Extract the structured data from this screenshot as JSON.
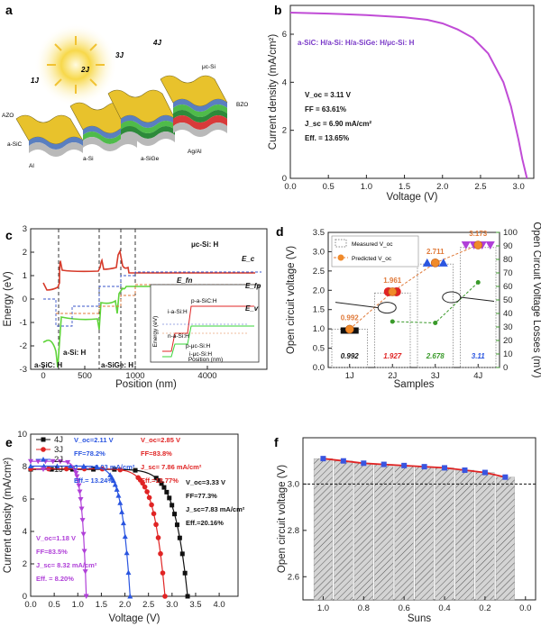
{
  "panel_labels": {
    "a": "a",
    "b": "b",
    "c": "c",
    "d": "d",
    "e": "e",
    "f": "f"
  },
  "panel_a": {
    "labels": [
      "1J",
      "2J",
      "3J",
      "4J",
      "AZO",
      "a-SiC",
      "Al",
      "a-Si",
      "a-SiGe",
      "Ag/Al",
      "μc-Si",
      "BZO"
    ],
    "colors": {
      "yellow": "#e8c22c",
      "blue": "#5a7fc0",
      "green": "#4fbb4a",
      "red": "#d83a3a",
      "grey": "#b9b9b9",
      "sun": "#f7d84a"
    }
  },
  "chart_data": [
    {
      "id": "b",
      "type": "line",
      "xlabel": "Voltage (V)",
      "ylabel": "Current density (mA/cm²)",
      "xlim": [
        0.0,
        3.2
      ],
      "ylim": [
        0,
        7.2
      ],
      "xticks": [
        "0.0",
        "0.5",
        "1.0",
        "1.5",
        "2.0",
        "2.5",
        "3.0"
      ],
      "yticks": [
        "0",
        "2",
        "4",
        "6"
      ],
      "series": [
        {
          "name": "a-SiC: H/a-Si: H/a-SiGe: H/μc-Si: H",
          "color": "#c04bd6",
          "x": [
            0.0,
            0.5,
            1.0,
            1.5,
            1.8,
            2.0,
            2.2,
            2.4,
            2.6,
            2.8,
            2.9,
            3.0,
            3.05,
            3.11
          ],
          "y": [
            6.9,
            6.86,
            6.8,
            6.7,
            6.6,
            6.45,
            6.2,
            5.85,
            5.2,
            4.0,
            3.0,
            1.6,
            0.8,
            0.0
          ]
        }
      ],
      "annotations": [
        "V_oc = 3.11 V",
        "FF = 63.61%",
        "J_sc = 6.90 mA/cm²",
        "Eff. = 13.65%"
      ]
    },
    {
      "id": "c",
      "type": "line",
      "xlabel": "Position (nm)",
      "ylabel": "Energy (eV)",
      "ylim": [
        -3,
        3
      ],
      "yticks": [
        "-3",
        "-2",
        "-1",
        "0",
        "1",
        "2",
        "3"
      ],
      "xticks": [
        "0",
        "500",
        "1000",
        "4000"
      ],
      "region_labels": [
        "a-SiC: H",
        "a-Si: H",
        "a-SiGe: H",
        "μc-Si: H"
      ],
      "band_labels": [
        "E_c",
        "E_fn",
        "E_fp",
        "E_v"
      ],
      "inset_labels": [
        "p-a-SiC:H",
        "i-a-Si:H",
        "n-a-Si:H",
        "p-μc-Si:H",
        "i-μc-Si:H",
        "Energy (eV)",
        "Position (nm)"
      ],
      "colors": {
        "ec": "#d63a2a",
        "ev": "#5fd43a",
        "ef_n": "#3a55c8",
        "ef_p": "#e07a3a"
      }
    },
    {
      "id": "d",
      "type": "scatter",
      "categories": [
        "1J",
        "2J",
        "3J",
        "4J"
      ],
      "xlabel": "Samples",
      "ylabel_left": "Open circuit voltage (V)",
      "ylabel_right": "Open Circuit Voltage Losses (mV)",
      "ylim_left": [
        0.0,
        3.5
      ],
      "ylim_right": [
        0,
        100
      ],
      "yticks_left": [
        "0.0",
        "0.5",
        "1.0",
        "1.5",
        "2.0",
        "2.5",
        "3.0",
        "3.5"
      ],
      "yticks_right": [
        "0",
        "10",
        "20",
        "30",
        "40",
        "50",
        "60",
        "70",
        "80",
        "90",
        "100"
      ],
      "legend": [
        "Measured V_oc",
        "Predicted V_oc"
      ],
      "predicted": [
        0.992,
        1.961,
        2.711,
        3.173
      ],
      "predicted_labels": [
        "0.992",
        "1.961",
        "2.711",
        "3.173"
      ],
      "measured": [
        0.992,
        1.927,
        2.678,
        3.11
      ],
      "measured_labels": [
        "0.992",
        "1.927",
        "2.678",
        "3.11"
      ],
      "losses_mv": [
        null,
        34,
        33,
        63
      ]
    },
    {
      "id": "e",
      "type": "line",
      "xlabel": "Voltage (V)",
      "ylabel": "Current density (mA/cm²)",
      "xlim": [
        0.0,
        4.4
      ],
      "ylim": [
        0,
        10
      ],
      "xticks": [
        "0.0",
        "0.5",
        "1.0",
        "1.5",
        "2.0",
        "2.5",
        "3.0",
        "3.5",
        "4.0"
      ],
      "yticks": [
        "0",
        "2",
        "4",
        "6",
        "8",
        "10"
      ],
      "series": [
        {
          "name": "4J",
          "color": "#111111",
          "marker": "square",
          "voc": 3.33,
          "jsc": 7.83
        },
        {
          "name": "3J",
          "color": "#e02424",
          "marker": "circle",
          "voc": 2.85,
          "jsc": 7.86
        },
        {
          "name": "2J",
          "color": "#2a55e0",
          "marker": "triangle",
          "voc": 2.11,
          "jsc": 8.03
        },
        {
          "name": "1J",
          "color": "#b040d8",
          "marker": "triangle-down",
          "voc": 1.18,
          "jsc": 8.32
        }
      ],
      "annotations": {
        "2J": [
          "V_oc=2.11 V",
          "FF=78.2%",
          "J_sc= 8.03 mA/cm²",
          "Eff.= 13.24%"
        ],
        "3J": [
          "V_oc=2.85 V",
          "FF=83.8%",
          "J_sc= 7.86 mA/cm²",
          "Eff.=18.77%"
        ],
        "4J": [
          "V_oc=3.33 V",
          "FF=77.3%",
          "J_sc=7.83 mA/cm²",
          "Eff.=20.16%"
        ],
        "1J": [
          "V_oc=1.18 V",
          "FF=83.5%",
          "J_sc= 8.32 mA/cm²",
          "Eff. = 8.20%"
        ]
      }
    },
    {
      "id": "f",
      "type": "bar",
      "xlabel": "Suns",
      "ylabel": "Open circuit voltage (V)",
      "xlim": [
        1.1,
        -0.05
      ],
      "ylim": [
        2.5,
        3.2
      ],
      "xticks": [
        "1.0",
        "0.8",
        "0.6",
        "0.4",
        "0.2",
        "0.0"
      ],
      "yticks": [
        "2.6",
        "2.8",
        "3.0"
      ],
      "x": [
        1.0,
        0.9,
        0.8,
        0.7,
        0.6,
        0.5,
        0.4,
        0.3,
        0.2,
        0.1
      ],
      "values": [
        3.11,
        3.1,
        3.09,
        3.085,
        3.08,
        3.075,
        3.07,
        3.06,
        3.05,
        3.03
      ],
      "reference_line": 3.0,
      "colors": {
        "bar": "#cfcfcf",
        "line": "#e02424",
        "marker": "#3a55e0"
      }
    }
  ]
}
